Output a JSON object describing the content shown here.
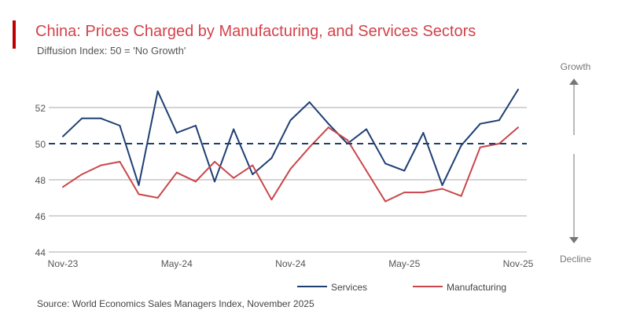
{
  "title": "China: Prices Charged by Manufacturing, and Services Sectors",
  "subtitle": "Diffusion Index: 50 = 'No Growth'",
  "source": "Source: World Economics Sales Managers Index, November 2025",
  "annotations": {
    "up": "Growth",
    "down": "Decline"
  },
  "chart_data": {
    "type": "line",
    "ylim": [
      44,
      53.5
    ],
    "yticks": [
      44,
      46,
      48,
      50,
      52
    ],
    "reference_line": {
      "value": 50,
      "style": "dashed",
      "color": "#1f3f73"
    },
    "grid": true,
    "legend": "bottom",
    "x": [
      "Nov-23",
      "Dec-23",
      "Jan-24",
      "Feb-24",
      "Mar-24",
      "Apr-24",
      "May-24",
      "Jun-24",
      "Jul-24",
      "Aug-24",
      "Sep-24",
      "Oct-24",
      "Nov-24",
      "Dec-24",
      "Jan-25",
      "Feb-25",
      "Mar-25",
      "Apr-25",
      "May-25",
      "Jun-25",
      "Jul-25",
      "Aug-25",
      "Sep-25",
      "Oct-25",
      "Nov-25"
    ],
    "xtick_labels": [
      "Nov-23",
      "May-24",
      "Nov-24",
      "May-25",
      "Nov-25"
    ],
    "series": [
      {
        "name": "Services",
        "color": "#1f3f73",
        "values": [
          50.4,
          51.4,
          51.4,
          51.0,
          47.7,
          52.9,
          50.6,
          51.0,
          47.9,
          50.8,
          48.3,
          49.2,
          51.3,
          52.3,
          51.1,
          50.0,
          50.8,
          48.9,
          48.5,
          50.6,
          47.7,
          49.9,
          51.1,
          51.3,
          53.0
        ]
      },
      {
        "name": "Manufacturing",
        "color": "#c9474a",
        "values": [
          47.6,
          48.3,
          48.8,
          49.0,
          47.2,
          47.0,
          48.4,
          47.9,
          49.0,
          48.1,
          48.8,
          46.9,
          48.6,
          49.8,
          50.9,
          50.2,
          48.5,
          46.8,
          47.3,
          47.3,
          47.5,
          47.1,
          49.8,
          50.0,
          50.9
        ]
      }
    ]
  }
}
